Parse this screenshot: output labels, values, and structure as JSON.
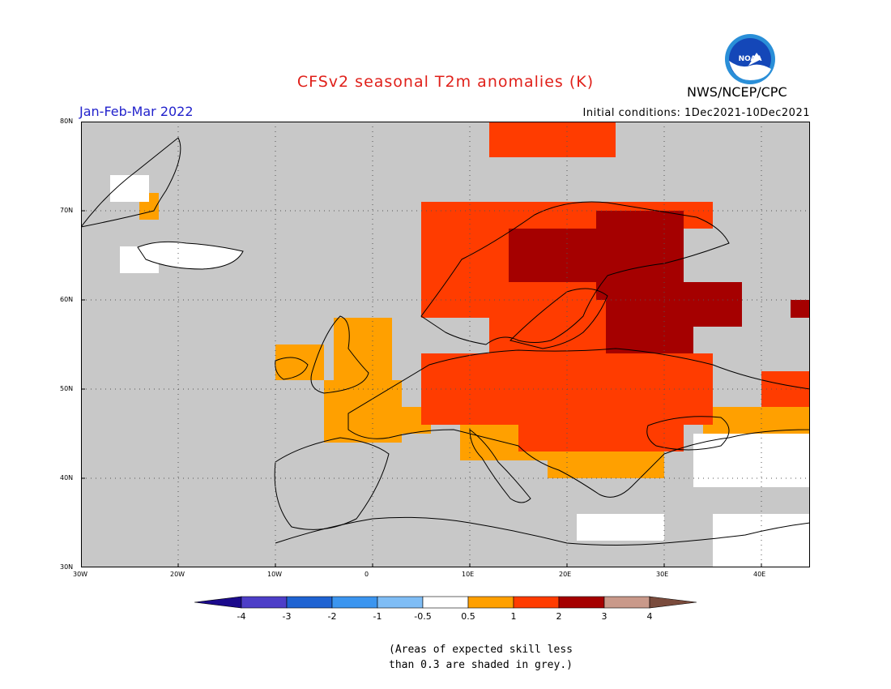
{
  "header": {
    "title": "CFSv2 seasonal T2m anomalies (K)",
    "period": "Jan-Feb-Mar 2022",
    "initial_conditions": "Initial conditions: 1Dec2021-10Dec2021",
    "agency": "NWS/NCEP/CPC",
    "logo_text": "NOAA"
  },
  "map": {
    "lon_range": [
      -30,
      45
    ],
    "lat_range": [
      30,
      80
    ],
    "lon_ticks": [
      "30W",
      "20W",
      "10W",
      "0",
      "10E",
      "20E",
      "30E",
      "40E"
    ],
    "lat_ticks": [
      "30N",
      "40N",
      "50N",
      "60N",
      "70N",
      "80N"
    ],
    "grid": "dotted",
    "background_color": "#c8c8c8",
    "regions": [
      {
        "anomaly": "0.5-1",
        "lon": [
          -4,
          2
        ],
        "lat": [
          50,
          58
        ]
      },
      {
        "anomaly": "0.5-1",
        "lon": [
          -10,
          -5
        ],
        "lat": [
          51,
          55
        ]
      },
      {
        "anomaly": "0.5-1",
        "lon": [
          -5,
          3
        ],
        "lat": [
          44,
          51
        ]
      },
      {
        "anomaly": "0.5-1",
        "lon": [
          3,
          6
        ],
        "lat": [
          45,
          48
        ]
      },
      {
        "anomaly": "0.5-1",
        "lon": [
          9,
          18
        ],
        "lat": [
          42,
          46
        ]
      },
      {
        "anomaly": "0.5-1",
        "lon": [
          18,
          30
        ],
        "lat": [
          40,
          45
        ]
      },
      {
        "anomaly": "0.5-1",
        "lon": [
          34,
          45
        ],
        "lat": [
          45,
          48
        ]
      },
      {
        "anomaly": "0.5-1",
        "lon": [
          -24,
          -22
        ],
        "lat": [
          69,
          72
        ]
      },
      {
        "anomaly": "1-2",
        "lon": [
          5,
          35
        ],
        "lat": [
          46,
          54
        ]
      },
      {
        "anomaly": "1-2",
        "lon": [
          15,
          32
        ],
        "lat": [
          43,
          47
        ]
      },
      {
        "anomaly": "1-2",
        "lon": [
          5,
          25
        ],
        "lat": [
          58,
          71
        ]
      },
      {
        "anomaly": "1-2",
        "lon": [
          12,
          25
        ],
        "lat": [
          54,
          58
        ]
      },
      {
        "anomaly": "1-2",
        "lon": [
          20,
          35
        ],
        "lat": [
          68,
          71
        ]
      },
      {
        "anomaly": "1-2",
        "lon": [
          40,
          45
        ],
        "lat": [
          48,
          52
        ]
      },
      {
        "anomaly": "1-2",
        "lon": [
          12,
          25
        ],
        "lat": [
          76,
          80
        ]
      },
      {
        "anomaly": "2-3",
        "lon": [
          14,
          24
        ],
        "lat": [
          62,
          68
        ]
      },
      {
        "anomaly": "2-3",
        "lon": [
          23,
          32
        ],
        "lat": [
          60,
          70
        ]
      },
      {
        "anomaly": "2-3",
        "lon": [
          24,
          33
        ],
        "lat": [
          54,
          60
        ]
      },
      {
        "anomaly": "2-3",
        "lon": [
          30,
          38
        ],
        "lat": [
          57,
          62
        ]
      },
      {
        "anomaly": "2-3",
        "lon": [
          43,
          45
        ],
        "lat": [
          58,
          60
        ]
      },
      {
        "anomaly": "-0.5-0.5",
        "lon": [
          -26,
          -22
        ],
        "lat": [
          63,
          66
        ]
      },
      {
        "anomaly": "-0.5-0.5",
        "lon": [
          -27,
          -23
        ],
        "lat": [
          71,
          74
        ]
      },
      {
        "anomaly": "-0.5-0.5",
        "lon": [
          33,
          45
        ],
        "lat": [
          39,
          45
        ]
      },
      {
        "anomaly": "-0.5-0.5",
        "lon": [
          35,
          45
        ],
        "lat": [
          30,
          36
        ]
      },
      {
        "anomaly": "-0.5-0.5",
        "lon": [
          21,
          30
        ],
        "lat": [
          33,
          36
        ]
      }
    ]
  },
  "colorbar": {
    "labels": [
      "-4",
      "-3",
      "-2",
      "-1",
      "-0.5",
      "0.5",
      "1",
      "2",
      "3",
      "4"
    ],
    "bins": [
      {
        "range": "<-4",
        "color": "#1b0a8c"
      },
      {
        "range": "-4 to -3",
        "color": "#4d3ec8"
      },
      {
        "range": "-3 to -2",
        "color": "#1f63d2"
      },
      {
        "range": "-2 to -1",
        "color": "#3b95ef"
      },
      {
        "range": "-1 to -0.5",
        "color": "#7fbdf5"
      },
      {
        "range": "-0.5 to 0.5",
        "color": "#ffffff"
      },
      {
        "range": "0.5 to 1",
        "color": "#ffa000"
      },
      {
        "range": "1 to 2",
        "color": "#ff3c00"
      },
      {
        "range": "2 to 3",
        "color": "#a50000"
      },
      {
        "range": "3 to 4",
        "color": "#c9998a"
      },
      {
        "range": ">4",
        "color": "#7a4b3c"
      }
    ]
  },
  "note": {
    "line1": "(Areas of expected skill less",
    "line2": "than 0.3 are shaded in grey.)"
  }
}
